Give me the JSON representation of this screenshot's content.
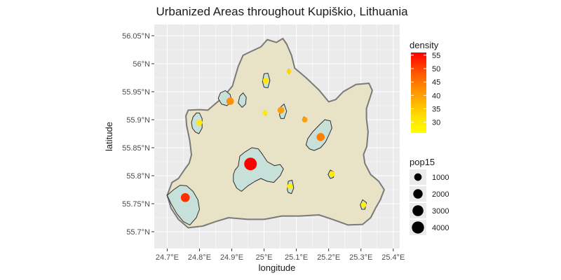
{
  "chart_data": {
    "type": "scatter",
    "title": "Urbanized Areas throughout Kupiškio, Lithuania",
    "xlabel": "longitude",
    "ylabel": "latitude",
    "xlim": [
      24.66,
      25.42
    ],
    "ylim": [
      55.67,
      56.07
    ],
    "x_ticks": [
      {
        "value": 24.7,
        "label": "24.7°E"
      },
      {
        "value": 24.8,
        "label": "24.8°E"
      },
      {
        "value": 24.9,
        "label": "24.9°E"
      },
      {
        "value": 25.0,
        "label": "25°E"
      },
      {
        "value": 25.1,
        "label": "25.1°E"
      },
      {
        "value": 25.2,
        "label": "25.2°E"
      },
      {
        "value": 25.3,
        "label": "25.3°E"
      },
      {
        "value": 25.4,
        "label": "25.4°E"
      }
    ],
    "y_ticks": [
      {
        "value": 55.7,
        "label": "55.7°N"
      },
      {
        "value": 55.75,
        "label": "55.75°N"
      },
      {
        "value": 55.8,
        "label": "55.8°N"
      },
      {
        "value": 55.85,
        "label": "55.85°N"
      },
      {
        "value": 55.9,
        "label": "55.9°N"
      },
      {
        "value": 55.95,
        "label": "55.95°N"
      },
      {
        "value": 56.0,
        "label": "56°N"
      },
      {
        "value": 56.05,
        "label": "56.05°N"
      }
    ],
    "grid": true,
    "boundary": [
      [
        24.715,
        55.788
      ],
      [
        24.735,
        55.795
      ],
      [
        24.755,
        55.812
      ],
      [
        24.768,
        55.822
      ],
      [
        24.775,
        55.837
      ],
      [
        24.77,
        55.862
      ],
      [
        24.76,
        55.89
      ],
      [
        24.758,
        55.907
      ],
      [
        24.765,
        55.917
      ],
      [
        24.8,
        55.918
      ],
      [
        24.826,
        55.917
      ],
      [
        24.848,
        55.928
      ],
      [
        24.873,
        55.94
      ],
      [
        24.902,
        55.96
      ],
      [
        24.92,
        55.995
      ],
      [
        24.935,
        56.015
      ],
      [
        24.96,
        56.022
      ],
      [
        24.99,
        56.03
      ],
      [
        25.01,
        56.043
      ],
      [
        25.038,
        56.038
      ],
      [
        25.058,
        56.045
      ],
      [
        25.07,
        56.035
      ],
      [
        25.085,
        56.015
      ],
      [
        25.095,
        55.992
      ],
      [
        25.13,
        55.975
      ],
      [
        25.17,
        55.953
      ],
      [
        25.2,
        55.932
      ],
      [
        25.222,
        55.936
      ],
      [
        25.245,
        55.95
      ],
      [
        25.285,
        55.963
      ],
      [
        25.325,
        55.965
      ],
      [
        25.335,
        55.952
      ],
      [
        25.317,
        55.92
      ],
      [
        25.317,
        55.902
      ],
      [
        25.322,
        55.878
      ],
      [
        25.318,
        55.852
      ],
      [
        25.308,
        55.838
      ],
      [
        25.312,
        55.822
      ],
      [
        25.33,
        55.802
      ],
      [
        25.355,
        55.79
      ],
      [
        25.372,
        55.775
      ],
      [
        25.36,
        55.757
      ],
      [
        25.345,
        55.742
      ],
      [
        25.33,
        55.725
      ],
      [
        25.305,
        55.713
      ],
      [
        25.26,
        55.712
      ],
      [
        25.212,
        55.722
      ],
      [
        25.17,
        55.73
      ],
      [
        25.11,
        55.728
      ],
      [
        25.055,
        55.728
      ],
      [
        25.0,
        55.722
      ],
      [
        24.95,
        55.722
      ],
      [
        24.89,
        55.725
      ],
      [
        24.85,
        55.718
      ],
      [
        24.81,
        55.71
      ],
      [
        24.765,
        55.707
      ],
      [
        24.735,
        55.722
      ],
      [
        24.712,
        55.742
      ],
      [
        24.7,
        55.765
      ]
    ],
    "urban_areas": [
      [
        [
          24.905,
          55.802
        ],
        [
          24.91,
          55.81
        ],
        [
          24.92,
          55.817
        ],
        [
          24.925,
          55.835
        ],
        [
          24.94,
          55.842
        ],
        [
          24.962,
          55.85
        ],
        [
          24.982,
          55.848
        ],
        [
          24.995,
          55.838
        ],
        [
          25.01,
          55.825
        ],
        [
          25.032,
          55.818
        ],
        [
          25.05,
          55.82
        ],
        [
          25.06,
          55.812
        ],
        [
          25.05,
          55.8
        ],
        [
          25.03,
          55.788
        ],
        [
          25.01,
          55.79
        ],
        [
          24.99,
          55.795
        ],
        [
          24.972,
          55.79
        ],
        [
          24.95,
          55.782
        ],
        [
          24.93,
          55.772
        ],
        [
          24.915,
          55.778
        ],
        [
          24.905,
          55.79
        ]
      ],
      [
        [
          24.7,
          55.765
        ],
        [
          24.72,
          55.775
        ],
        [
          24.74,
          55.783
        ],
        [
          24.76,
          55.782
        ],
        [
          24.78,
          55.772
        ],
        [
          24.795,
          55.757
        ],
        [
          24.8,
          55.74
        ],
        [
          24.79,
          55.725
        ],
        [
          24.77,
          55.712
        ],
        [
          24.75,
          55.718
        ],
        [
          24.73,
          55.732
        ],
        [
          24.712,
          55.75
        ]
      ],
      [
        [
          25.13,
          55.855
        ],
        [
          25.135,
          55.866
        ],
        [
          25.15,
          55.878
        ],
        [
          25.17,
          55.89
        ],
        [
          25.188,
          55.9
        ],
        [
          25.205,
          55.898
        ],
        [
          25.21,
          55.885
        ],
        [
          25.2,
          55.872
        ],
        [
          25.19,
          55.86
        ],
        [
          25.175,
          55.85
        ],
        [
          25.155,
          55.845
        ],
        [
          25.14,
          55.848
        ]
      ],
      [
        [
          24.775,
          55.895
        ],
        [
          24.78,
          55.905
        ],
        [
          24.79,
          55.912
        ],
        [
          24.8,
          55.912
        ],
        [
          24.808,
          55.902
        ],
        [
          24.808,
          55.885
        ],
        [
          24.798,
          55.875
        ],
        [
          24.787,
          55.878
        ],
        [
          24.778,
          55.885
        ]
      ],
      [
        [
          24.858,
          55.938
        ],
        [
          24.865,
          55.948
        ],
        [
          24.88,
          55.952
        ],
        [
          24.895,
          55.945
        ],
        [
          24.9,
          55.932
        ],
        [
          24.885,
          55.925
        ],
        [
          24.868,
          55.928
        ]
      ],
      [
        [
          24.92,
          55.93
        ],
        [
          24.925,
          55.942
        ],
        [
          24.935,
          55.948
        ],
        [
          24.945,
          55.94
        ],
        [
          24.943,
          55.928
        ],
        [
          24.932,
          55.922
        ]
      ],
      [
        [
          24.995,
          55.968
        ],
        [
          25.0,
          55.982
        ],
        [
          25.012,
          55.983
        ],
        [
          25.018,
          55.97
        ],
        [
          25.012,
          55.957
        ],
        [
          25.0,
          55.958
        ]
      ],
      [
        [
          25.048,
          55.908
        ],
        [
          25.05,
          55.922
        ],
        [
          25.062,
          55.928
        ],
        [
          25.07,
          55.915
        ],
        [
          25.062,
          55.902
        ],
        [
          25.052,
          55.902
        ]
      ],
      [
        [
          25.072,
          55.775
        ],
        [
          25.075,
          55.79
        ],
        [
          25.087,
          55.792
        ],
        [
          25.092,
          55.778
        ],
        [
          25.085,
          55.768
        ],
        [
          25.075,
          55.77
        ]
      ],
      [
        [
          25.198,
          55.802
        ],
        [
          25.205,
          55.81
        ],
        [
          25.215,
          55.807
        ],
        [
          25.215,
          55.797
        ],
        [
          25.205,
          55.795
        ]
      ],
      [
        [
          25.298,
          55.748
        ],
        [
          25.305,
          55.757
        ],
        [
          25.317,
          55.752
        ],
        [
          25.312,
          55.74
        ],
        [
          25.302,
          55.74
        ]
      ],
      [
        [
          25.12,
          55.9
        ],
        [
          25.123,
          55.905
        ],
        [
          25.13,
          55.903
        ],
        [
          25.128,
          55.897
        ]
      ],
      [
        [
          24.998,
          55.912
        ],
        [
          25.002,
          55.916
        ],
        [
          25.008,
          55.914
        ],
        [
          25.005,
          55.908
        ]
      ],
      [
        [
          25.074,
          55.985
        ],
        [
          25.076,
          55.99
        ],
        [
          25.08,
          55.987
        ],
        [
          25.078,
          55.982
        ]
      ]
    ],
    "points": [
      {
        "lon": 24.958,
        "lat": 55.821,
        "pop15": 4400,
        "density": 56
      },
      {
        "lon": 24.756,
        "lat": 55.761,
        "pop15": 1700,
        "density": 52
      },
      {
        "lon": 25.175,
        "lat": 55.869,
        "pop15": 1300,
        "density": 44
      },
      {
        "lon": 24.895,
        "lat": 55.933,
        "pop15": 1000,
        "density": 42
      },
      {
        "lon": 25.052,
        "lat": 55.917,
        "pop15": 700,
        "density": 40
      },
      {
        "lon": 25.126,
        "lat": 55.9,
        "pop15": 350,
        "density": 40
      },
      {
        "lon": 24.8,
        "lat": 55.895,
        "pop15": 450,
        "density": 30
      },
      {
        "lon": 25.005,
        "lat": 55.97,
        "pop15": 450,
        "density": 30
      },
      {
        "lon": 25.21,
        "lat": 55.803,
        "pop15": 400,
        "density": 30
      },
      {
        "lon": 25.08,
        "lat": 55.781,
        "pop15": 350,
        "density": 29
      },
      {
        "lon": 25.308,
        "lat": 55.748,
        "pop15": 350,
        "density": 29
      },
      {
        "lon": 25.003,
        "lat": 55.912,
        "pop15": 200,
        "density": 30
      },
      {
        "lon": 25.077,
        "lat": 55.986,
        "pop15": 150,
        "density": 33
      }
    ],
    "legend": {
      "placement": "right",
      "density": {
        "title": "density",
        "range": [
          26,
          56
        ],
        "ticks": [
          "55",
          "50",
          "45",
          "40",
          "35",
          "30"
        ],
        "colors": [
          "#ff0000",
          "#ff4500",
          "#ff8000",
          "#ffb000",
          "#ffe000",
          "#ffff00"
        ]
      },
      "pop15": {
        "title": "pop15",
        "values": [
          1000,
          2000,
          3000,
          4000
        ],
        "labels": [
          "1000",
          "2000",
          "3000",
          "4000"
        ]
      }
    },
    "colors": {
      "panel": "#ebebeb",
      "grid": "#ffffff",
      "land_fill": "#e8e2c6",
      "land_stroke": "#7a7a7a",
      "urban_fill": "#c8e0da",
      "urban_stroke": "#2f2f2f"
    }
  }
}
